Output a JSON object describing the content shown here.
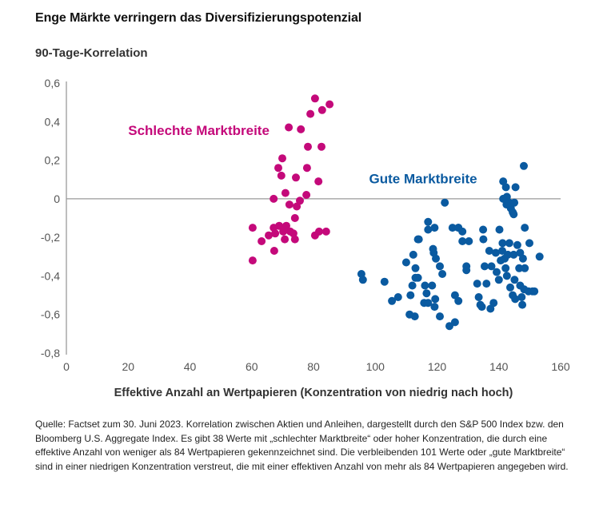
{
  "header": {
    "title": "Enge Märkte verringern das Diversifizierungspotenzial",
    "subtitle": "90-Tage-Korrelation"
  },
  "caption": "Quelle: Factset zum 30. Juni 2023. Korrelation zwischen Aktien und Anleihen, dargestellt durch den S&P 500 Index bzw. den Bloomberg U.S. Aggregate Index. Es gibt 38 Werte mit „schlechter Marktbreite“ oder hoher Konzentration, die durch eine effektive Anzahl von weniger als 84 Wertpapieren gekennzeichnet sind. Die verbleibenden 101 Werte oder „gute Marktbreite“ sind in einer niedrigen Konzentration verstreut, die mit einer effektiven Anzahl von mehr als 84 Wertpapieren angegeben wird.",
  "chart_data": {
    "type": "scatter",
    "title": "Enge Märkte verringern das Diversifizierungspotenzial",
    "ylabel": "90-Tage-Korrelation",
    "xlabel": "Effektive Anzahl an Wertpapieren (Konzentration von niedrig nach hoch)",
    "xlim": [
      0,
      160
    ],
    "ylim": [
      -0.8,
      0.6
    ],
    "xticks": [
      0,
      20,
      40,
      60,
      80,
      100,
      120,
      140,
      160
    ],
    "xtick_labels": [
      "0",
      "20",
      "40",
      "60",
      "80",
      "100",
      "120",
      "140",
      "160"
    ],
    "yticks": [
      0.6,
      0.4,
      0.2,
      0,
      -0.2,
      -0.4,
      -0.6,
      -0.8
    ],
    "ytick_labels": [
      "0,6",
      "0,4",
      "0,2",
      "0",
      "-0,2",
      "-0,4",
      "-0,6",
      "-0,8"
    ],
    "grid": false,
    "zero_line": true,
    "series": [
      {
        "name": "Schlechte Marktbreite",
        "color": "#c4097a",
        "points": [
          [
            80.5,
            0.52
          ],
          [
            85.2,
            0.49
          ],
          [
            82.8,
            0.46
          ],
          [
            79.0,
            0.44
          ],
          [
            72.0,
            0.37
          ],
          [
            75.9,
            0.36
          ],
          [
            78.2,
            0.27
          ],
          [
            82.6,
            0.27
          ],
          [
            69.9,
            0.21
          ],
          [
            68.6,
            0.16
          ],
          [
            77.9,
            0.16
          ],
          [
            69.6,
            0.12
          ],
          [
            74.3,
            0.11
          ],
          [
            81.6,
            0.09
          ],
          [
            70.9,
            0.03
          ],
          [
            67.1,
            0.0
          ],
          [
            77.7,
            0.02
          ],
          [
            72.2,
            -0.03
          ],
          [
            74.6,
            -0.04
          ],
          [
            75.6,
            -0.01
          ],
          [
            74.0,
            -0.1
          ],
          [
            68.9,
            -0.14
          ],
          [
            60.3,
            -0.15
          ],
          [
            71.2,
            -0.14
          ],
          [
            67.1,
            -0.15
          ],
          [
            72.5,
            -0.17
          ],
          [
            70.2,
            -0.17
          ],
          [
            65.5,
            -0.19
          ],
          [
            67.6,
            -0.18
          ],
          [
            73.5,
            -0.18
          ],
          [
            74.0,
            -0.21
          ],
          [
            70.7,
            -0.21
          ],
          [
            80.5,
            -0.19
          ],
          [
            81.8,
            -0.17
          ],
          [
            84.1,
            -0.17
          ],
          [
            63.2,
            -0.22
          ],
          [
            67.3,
            -0.27
          ],
          [
            60.3,
            -0.32
          ]
        ]
      },
      {
        "name": "Gute Marktbreite",
        "color": "#0a5aa0",
        "points": [
          [
            148.1,
            0.17
          ],
          [
            141.4,
            0.09
          ],
          [
            142.3,
            0.06
          ],
          [
            145.4,
            0.06
          ],
          [
            141.4,
            0.0
          ],
          [
            142.6,
            0.01
          ],
          [
            143.4,
            -0.02
          ],
          [
            145.0,
            -0.02
          ],
          [
            142.5,
            -0.03
          ],
          [
            144.5,
            -0.07
          ],
          [
            143.9,
            -0.05
          ],
          [
            144.8,
            -0.08
          ],
          [
            122.5,
            -0.02
          ],
          [
            117.1,
            -0.12
          ],
          [
            113.8,
            -0.21
          ],
          [
            117.1,
            -0.16
          ],
          [
            119.2,
            -0.15
          ],
          [
            125.0,
            -0.15
          ],
          [
            126.9,
            -0.15
          ],
          [
            128.2,
            -0.17
          ],
          [
            128.2,
            -0.22
          ],
          [
            130.3,
            -0.22
          ],
          [
            135.0,
            -0.21
          ],
          [
            140.2,
            -0.16
          ],
          [
            148.4,
            -0.15
          ],
          [
            134.9,
            -0.16
          ],
          [
            126.9,
            -0.15
          ],
          [
            141.2,
            -0.23
          ],
          [
            143.4,
            -0.23
          ],
          [
            146.0,
            -0.24
          ],
          [
            149.9,
            -0.23
          ],
          [
            136.9,
            -0.27
          ],
          [
            139.0,
            -0.28
          ],
          [
            141.1,
            -0.27
          ],
          [
            142.9,
            -0.29
          ],
          [
            144.8,
            -0.29
          ],
          [
            146.9,
            -0.28
          ],
          [
            147.8,
            -0.31
          ],
          [
            141.9,
            -0.31
          ],
          [
            140.6,
            -0.32
          ],
          [
            135.4,
            -0.35
          ],
          [
            137.6,
            -0.35
          ],
          [
            142.2,
            -0.36
          ],
          [
            148.4,
            -0.36
          ],
          [
            153.2,
            -0.3
          ],
          [
            114.1,
            -0.21
          ],
          [
            118.7,
            -0.26
          ],
          [
            118.9,
            -0.28
          ],
          [
            112.3,
            -0.29
          ],
          [
            119.6,
            -0.31
          ],
          [
            110.0,
            -0.33
          ],
          [
            120.9,
            -0.35
          ],
          [
            129.5,
            -0.35
          ],
          [
            113.0,
            -0.36
          ],
          [
            121.7,
            -0.39
          ],
          [
            95.5,
            -0.39
          ],
          [
            96.0,
            -0.42
          ],
          [
            103.0,
            -0.43
          ],
          [
            113.0,
            -0.41
          ],
          [
            113.8,
            -0.41
          ],
          [
            112.0,
            -0.45
          ],
          [
            116.1,
            -0.45
          ],
          [
            118.4,
            -0.45
          ],
          [
            116.6,
            -0.49
          ],
          [
            125.8,
            -0.5
          ],
          [
            107.4,
            -0.51
          ],
          [
            111.4,
            -0.5
          ],
          [
            105.4,
            -0.53
          ],
          [
            115.8,
            -0.54
          ],
          [
            117.1,
            -0.54
          ],
          [
            119.4,
            -0.52
          ],
          [
            119.2,
            -0.56
          ],
          [
            111.1,
            -0.6
          ],
          [
            112.8,
            -0.61
          ],
          [
            120.9,
            -0.61
          ],
          [
            125.8,
            -0.64
          ],
          [
            124.0,
            -0.66
          ],
          [
            133.5,
            -0.51
          ],
          [
            134.5,
            -0.56
          ],
          [
            137.3,
            -0.57
          ],
          [
            138.3,
            -0.54
          ],
          [
            144.5,
            -0.5
          ],
          [
            145.3,
            -0.52
          ],
          [
            147.6,
            -0.55
          ],
          [
            149.6,
            -0.48
          ],
          [
            150.9,
            -0.48
          ],
          [
            146.9,
            -0.45
          ],
          [
            148.2,
            -0.47
          ],
          [
            147.4,
            -0.51
          ],
          [
            126.9,
            -0.53
          ],
          [
            133.0,
            -0.44
          ],
          [
            140.0,
            -0.42
          ],
          [
            139.3,
            -0.38
          ],
          [
            142.6,
            -0.4
          ],
          [
            145.1,
            -0.42
          ],
          [
            143.7,
            -0.46
          ],
          [
            151.5,
            -0.48
          ],
          [
            146.6,
            -0.36
          ],
          [
            134.0,
            -0.55
          ],
          [
            129.5,
            -0.37
          ],
          [
            136.0,
            -0.44
          ]
        ]
      }
    ],
    "annotations": [
      {
        "text": "Schlechte Marktbreite",
        "series": "Schlechte Marktbreite",
        "x": 20,
        "y": 0.33
      },
      {
        "text": "Gute Marktbreite",
        "series": "Gute Marktbreite",
        "x": 98,
        "y": 0.08
      }
    ]
  }
}
